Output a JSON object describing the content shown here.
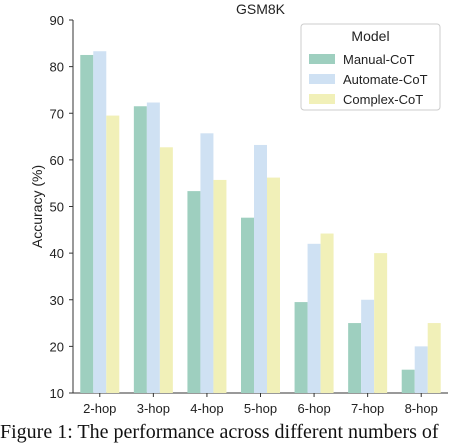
{
  "chart_data": {
    "type": "bar",
    "title": "GSM8K",
    "xlabel": "",
    "ylabel": "Accuracy (%)",
    "ylim": [
      10,
      90
    ],
    "yticks": [
      10,
      20,
      30,
      40,
      50,
      60,
      70,
      80,
      90
    ],
    "grid": false,
    "legend": {
      "title": "Model",
      "placement": "top-right"
    },
    "categories": [
      "2-hop",
      "3-hop",
      "4-hop",
      "5-hop",
      "6-hop",
      "7-hop",
      "8-hop"
    ],
    "series": [
      {
        "name": "Manual-CoT",
        "color": "#9ecfbf",
        "values": [
          82.5,
          71.5,
          53.3,
          47.6,
          29.5,
          25.0,
          15.0
        ]
      },
      {
        "name": "Automate-CoT",
        "color": "#cfe1f3",
        "values": [
          83.3,
          72.3,
          65.7,
          63.2,
          42.0,
          30.0,
          20.0
        ]
      },
      {
        "name": "Complex-CoT",
        "color": "#f1f0b8",
        "values": [
          69.5,
          62.7,
          55.7,
          56.2,
          44.2,
          40.0,
          25.0
        ]
      }
    ]
  },
  "caption": "Figure 1: The performance across different numbers of"
}
